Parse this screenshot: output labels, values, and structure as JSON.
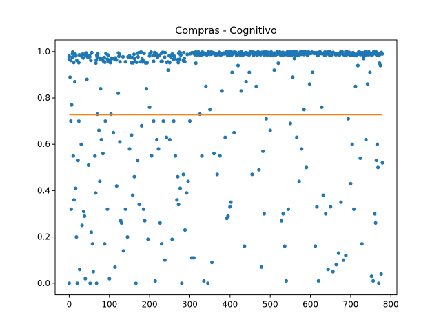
{
  "chart_data": {
    "type": "scatter",
    "title": "Compras - Cognitivo",
    "xlabel": "",
    "ylabel": "",
    "xlim": [
      -35,
      815
    ],
    "ylim": [
      -0.05,
      1.05
    ],
    "x_ticks": [
      0,
      100,
      200,
      300,
      400,
      500,
      600,
      700,
      800
    ],
    "y_ticks": [
      0.0,
      0.2,
      0.4,
      0.6,
      0.8,
      1.0
    ],
    "grid": false,
    "colors": {
      "points": "#1f77b4",
      "line": "#ff7f0e",
      "axes": "#000000"
    },
    "n_points": 780,
    "reference_line": {
      "y": 0.728,
      "x_start": 0,
      "x_end": 779
    },
    "series": [
      {
        "role": "points",
        "sample_points": [
          [
            0,
            0.0
          ],
          [
            0,
            0.98
          ],
          [
            2,
            0.89
          ],
          [
            4,
            0.7
          ],
          [
            5,
            0.32
          ],
          [
            6,
            0.77
          ],
          [
            8,
            0.99
          ],
          [
            10,
            0.55
          ],
          [
            12,
            0.36
          ],
          [
            14,
            0.87
          ],
          [
            16,
            0.41
          ],
          [
            18,
            0.2
          ],
          [
            20,
            0.0
          ],
          [
            22,
            0.53
          ],
          [
            24,
            0.7
          ],
          [
            26,
            0.06
          ],
          [
            30,
            0.6
          ],
          [
            32,
            0.25
          ],
          [
            36,
            0.31
          ],
          [
            38,
            0.29
          ],
          [
            40,
            0.02
          ],
          [
            44,
            0.88
          ],
          [
            48,
            0.51
          ],
          [
            52,
            0.0
          ],
          [
            55,
            0.22
          ],
          [
            58,
            0.17
          ],
          [
            60,
            0.05
          ],
          [
            64,
            0.55
          ],
          [
            66,
            0.39
          ],
          [
            68,
            0.0
          ],
          [
            70,
            0.73
          ],
          [
            74,
            0.66
          ],
          [
            76,
            0.44
          ],
          [
            78,
            0.84
          ],
          [
            80,
            0.62
          ],
          [
            84,
            0.56
          ],
          [
            88,
            0.17
          ],
          [
            90,
            0.7
          ],
          [
            95,
            0.32
          ],
          [
            100,
            0.02
          ],
          [
            104,
            0.73
          ],
          [
            110,
            0.65
          ],
          [
            114,
            0.07
          ],
          [
            118,
            0.42
          ],
          [
            122,
            0.82
          ],
          [
            126,
            0.61
          ],
          [
            128,
            0.27
          ],
          [
            130,
            0.26
          ],
          [
            135,
            0.14
          ],
          [
            140,
            0.32
          ],
          [
            145,
            0.2
          ],
          [
            150,
            0.58
          ],
          [
            155,
            0.64
          ],
          [
            158,
            0.38
          ],
          [
            162,
            0.46
          ],
          [
            166,
            0.0
          ],
          [
            170,
            0.53
          ],
          [
            174,
            0.34
          ],
          [
            180,
            0.68
          ],
          [
            185,
            0.32
          ],
          [
            188,
            0.27
          ],
          [
            192,
            0.84
          ],
          [
            196,
            0.19
          ],
          [
            200,
            0.76
          ],
          [
            205,
            0.55
          ],
          [
            210,
            0.7
          ],
          [
            214,
            0.01
          ],
          [
            218,
            0.62
          ],
          [
            222,
            0.58
          ],
          [
            226,
            0.26
          ],
          [
            230,
            0.17
          ],
          [
            234,
            0.7
          ],
          [
            238,
            0.1
          ],
          [
            242,
            0.63
          ],
          [
            246,
            0.92
          ],
          [
            250,
            0.62
          ],
          [
            256,
            0.19
          ],
          [
            260,
            0.7
          ],
          [
            264,
            0.55
          ],
          [
            268,
            0.36
          ],
          [
            270,
            0.46
          ],
          [
            272,
            0.34
          ],
          [
            276,
            0.41
          ],
          [
            280,
            0.0
          ],
          [
            284,
            0.47
          ],
          [
            288,
            0.23
          ],
          [
            292,
            0.39
          ],
          [
            296,
            0.44
          ],
          [
            300,
            0.7
          ],
          [
            305,
            0.11
          ],
          [
            310,
            0.11
          ],
          [
            315,
            0.95
          ],
          [
            325,
            0.73
          ],
          [
            330,
            0.55
          ],
          [
            335,
            0.01
          ],
          [
            340,
            0.85
          ],
          [
            345,
            0.0
          ],
          [
            350,
            0.75
          ],
          [
            355,
            0.09
          ],
          [
            360,
            0.56
          ],
          [
            368,
            0.47
          ],
          [
            375,
            0.55
          ],
          [
            380,
            0.83
          ],
          [
            388,
            0.63
          ],
          [
            392,
            0.28
          ],
          [
            395,
            0.29
          ],
          [
            400,
            0.33
          ],
          [
            402,
            0.35
          ],
          [
            405,
            0.91
          ],
          [
            410,
            0.65
          ],
          [
            420,
            0.94
          ],
          [
            428,
            0.83
          ],
          [
            436,
            0.16
          ],
          [
            440,
            0.87
          ],
          [
            448,
            0.91
          ],
          [
            455,
            0.47
          ],
          [
            465,
            0.85
          ],
          [
            472,
            0.49
          ],
          [
            478,
            0.07
          ],
          [
            482,
            0.57
          ],
          [
            485,
            0.3
          ],
          [
            490,
            0.71
          ],
          [
            500,
            0.66
          ],
          [
            510,
            0.92
          ],
          [
            516,
            0.99
          ],
          [
            520,
            0.95
          ],
          [
            528,
            0.27
          ],
          [
            532,
            0.3
          ],
          [
            536,
            0.16
          ],
          [
            540,
            0.01
          ],
          [
            545,
            0.32
          ],
          [
            550,
            0.69
          ],
          [
            556,
            0.89
          ],
          [
            560,
            0.97
          ],
          [
            566,
            0.63
          ],
          [
            572,
            0.44
          ],
          [
            578,
            0.58
          ],
          [
            584,
            0.75
          ],
          [
            590,
            0.5
          ],
          [
            598,
            0.86
          ],
          [
            605,
            0.91
          ],
          [
            612,
            0.16
          ],
          [
            616,
            0.33
          ],
          [
            620,
            0.01
          ],
          [
            628,
            0.76
          ],
          [
            632,
            0.38
          ],
          [
            638,
            0.3
          ],
          [
            644,
            0.06
          ],
          [
            650,
            0.33
          ],
          [
            656,
            0.05
          ],
          [
            664,
            0.08
          ],
          [
            670,
            0.13
          ],
          [
            676,
            0.35
          ],
          [
            682,
            0.1
          ],
          [
            688,
            0.12
          ],
          [
            694,
            0.71
          ],
          [
            700,
            0.43
          ],
          [
            704,
            0.6
          ],
          [
            708,
            0.32
          ],
          [
            712,
            0.85
          ],
          [
            718,
            0.94
          ],
          [
            724,
            0.54
          ],
          [
            728,
            0.17
          ],
          [
            732,
            0.97
          ],
          [
            738,
            0.62
          ],
          [
            742,
            0.86
          ],
          [
            748,
            0.91
          ],
          [
            752,
            0.03
          ],
          [
            756,
            0.01
          ],
          [
            760,
            0.3
          ],
          [
            762,
            0.26
          ],
          [
            764,
            0.53
          ],
          [
            766,
            0.6
          ],
          [
            768,
            0.5
          ],
          [
            770,
            0.0
          ],
          [
            772,
            0.95
          ],
          [
            774,
            0.94
          ],
          [
            776,
            0.04
          ],
          [
            779,
            0.52
          ]
        ],
        "upper_band": {
          "x_range": [
            0,
            779
          ],
          "y_range": [
            0.95,
            1.0
          ]
        }
      }
    ]
  }
}
